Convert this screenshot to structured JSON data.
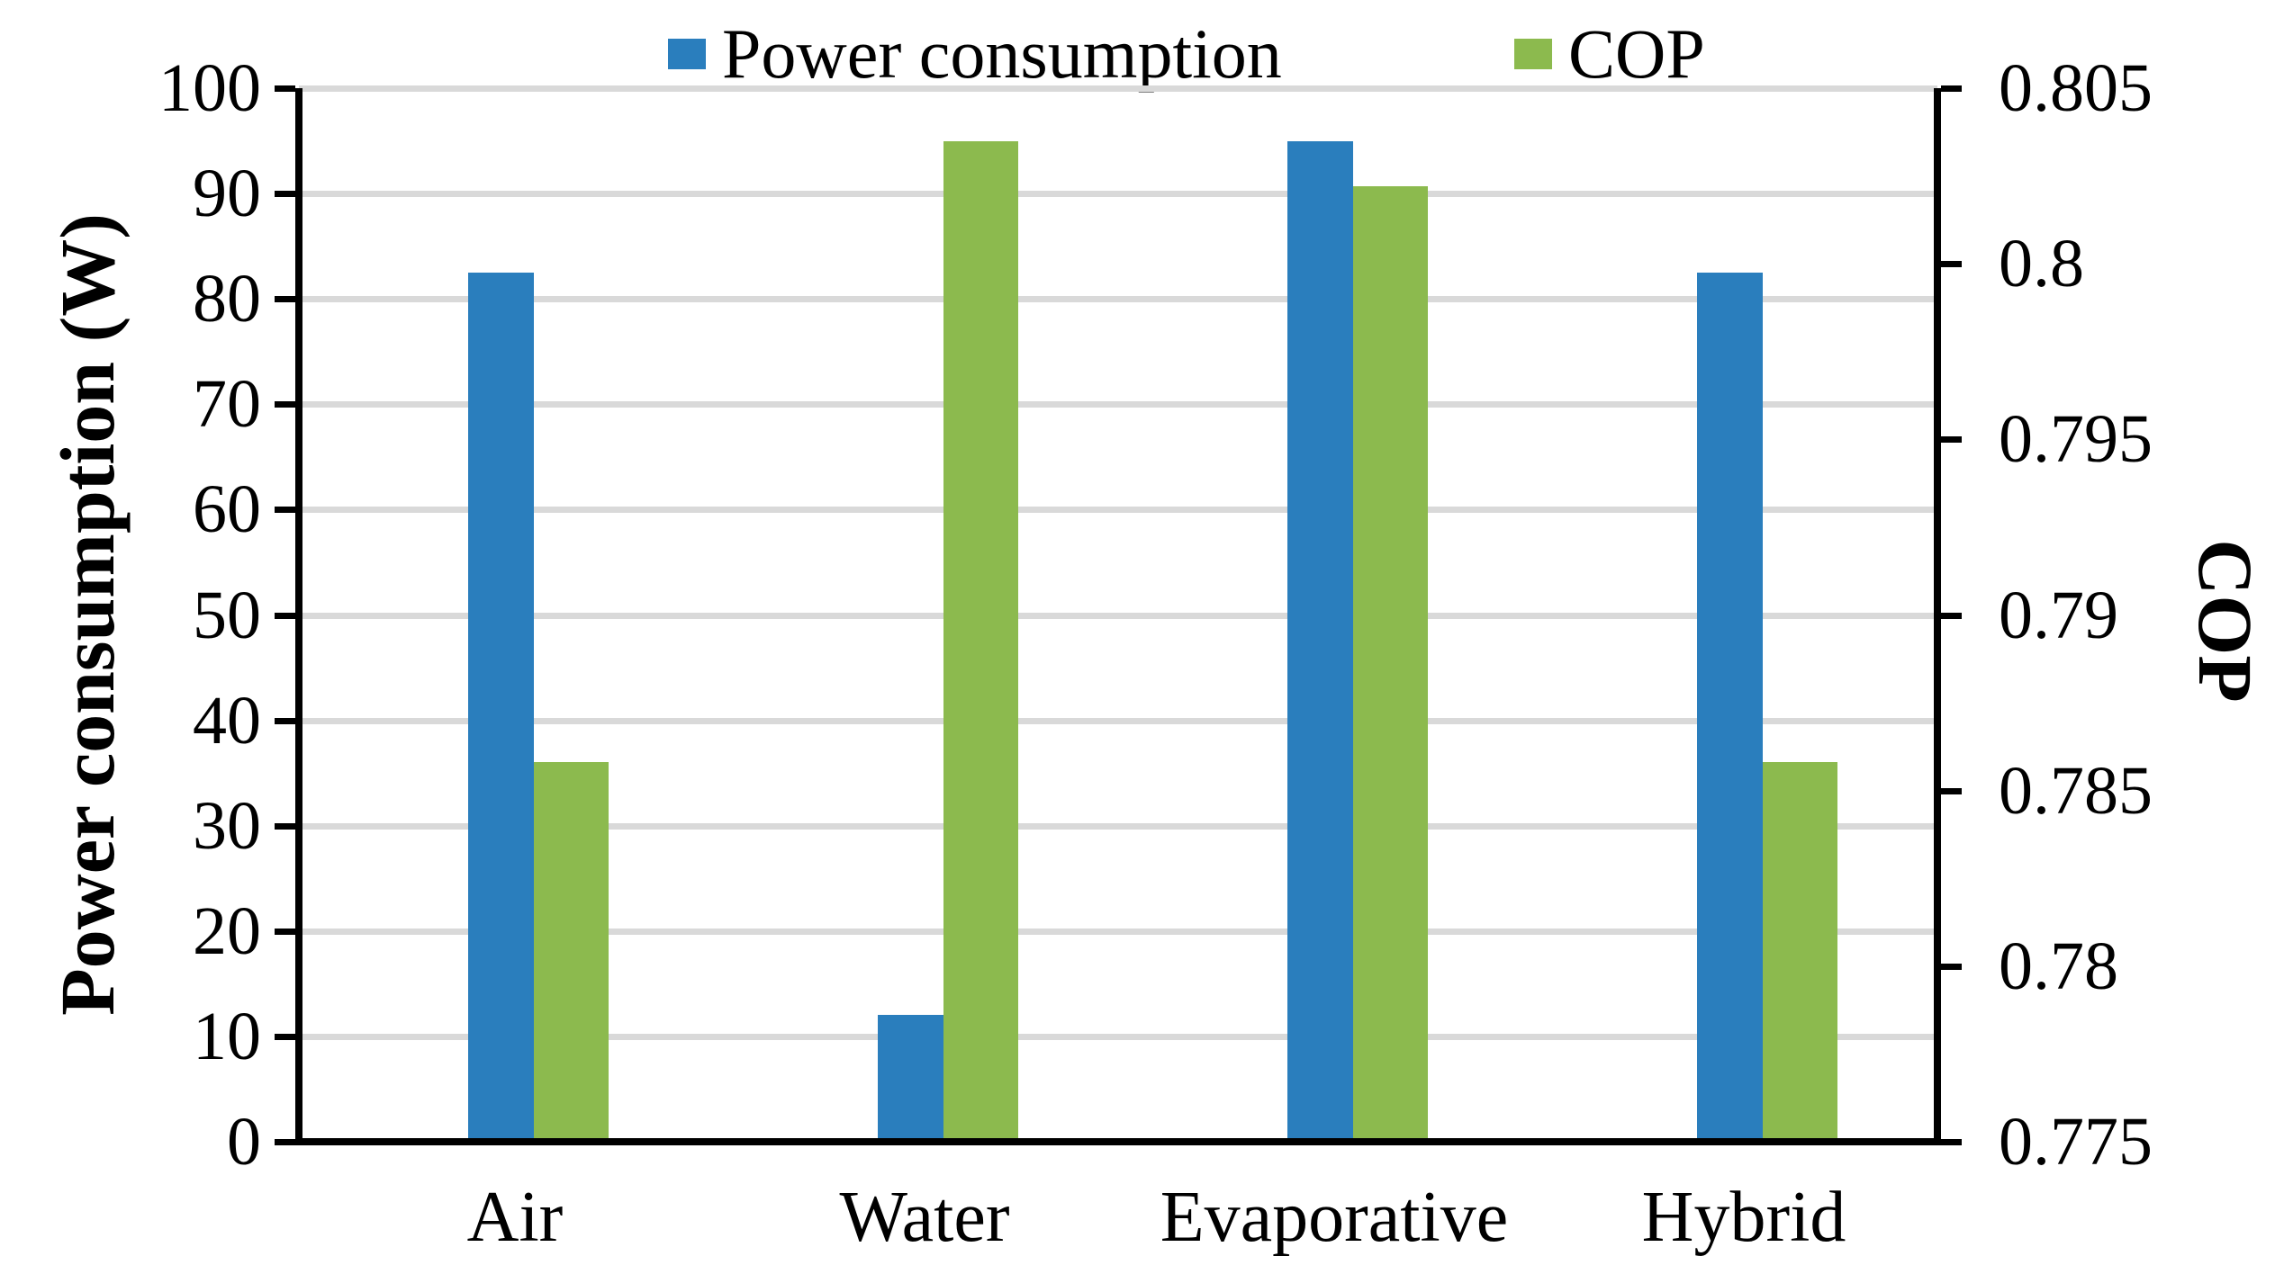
{
  "figure": {
    "background": "#ffffff"
  },
  "legend": {
    "position": "top",
    "items": [
      {
        "label": "Power consumption",
        "color": "#2a7ebd"
      },
      {
        "label": "COP",
        "color": "#8cba4e"
      }
    ]
  },
  "chart_data": {
    "type": "bar",
    "categories": [
      "Air",
      "Water",
      "Evaporative",
      "Hybrid"
    ],
    "series": [
      {
        "name": "Power consumption",
        "axis": "left",
        "color": "#2a7ebd",
        "values": [
          82.5,
          12,
          95,
          82.5
        ]
      },
      {
        "name": "COP",
        "axis": "right",
        "color": "#8cba4e",
        "values": [
          0.7858,
          0.8035,
          0.8022,
          0.7858
        ]
      }
    ],
    "left_axis": {
      "label": "Power consumption (W)",
      "min": 0,
      "max": 100,
      "tick_step": 10,
      "ticks": [
        "0",
        "10",
        "20",
        "30",
        "40",
        "50",
        "60",
        "70",
        "80",
        "90",
        "100"
      ]
    },
    "right_axis": {
      "label": "COP",
      "min": 0.775,
      "max": 0.805,
      "tick_step": 0.005,
      "ticks": [
        "0.775",
        "0.78",
        "0.785",
        "0.79",
        "0.795",
        "0.8",
        "0.805"
      ]
    },
    "grid": "horizontal-gray",
    "gridline_color": "#d9d9d9",
    "axis_color": "#000000",
    "legend_position": "top"
  }
}
